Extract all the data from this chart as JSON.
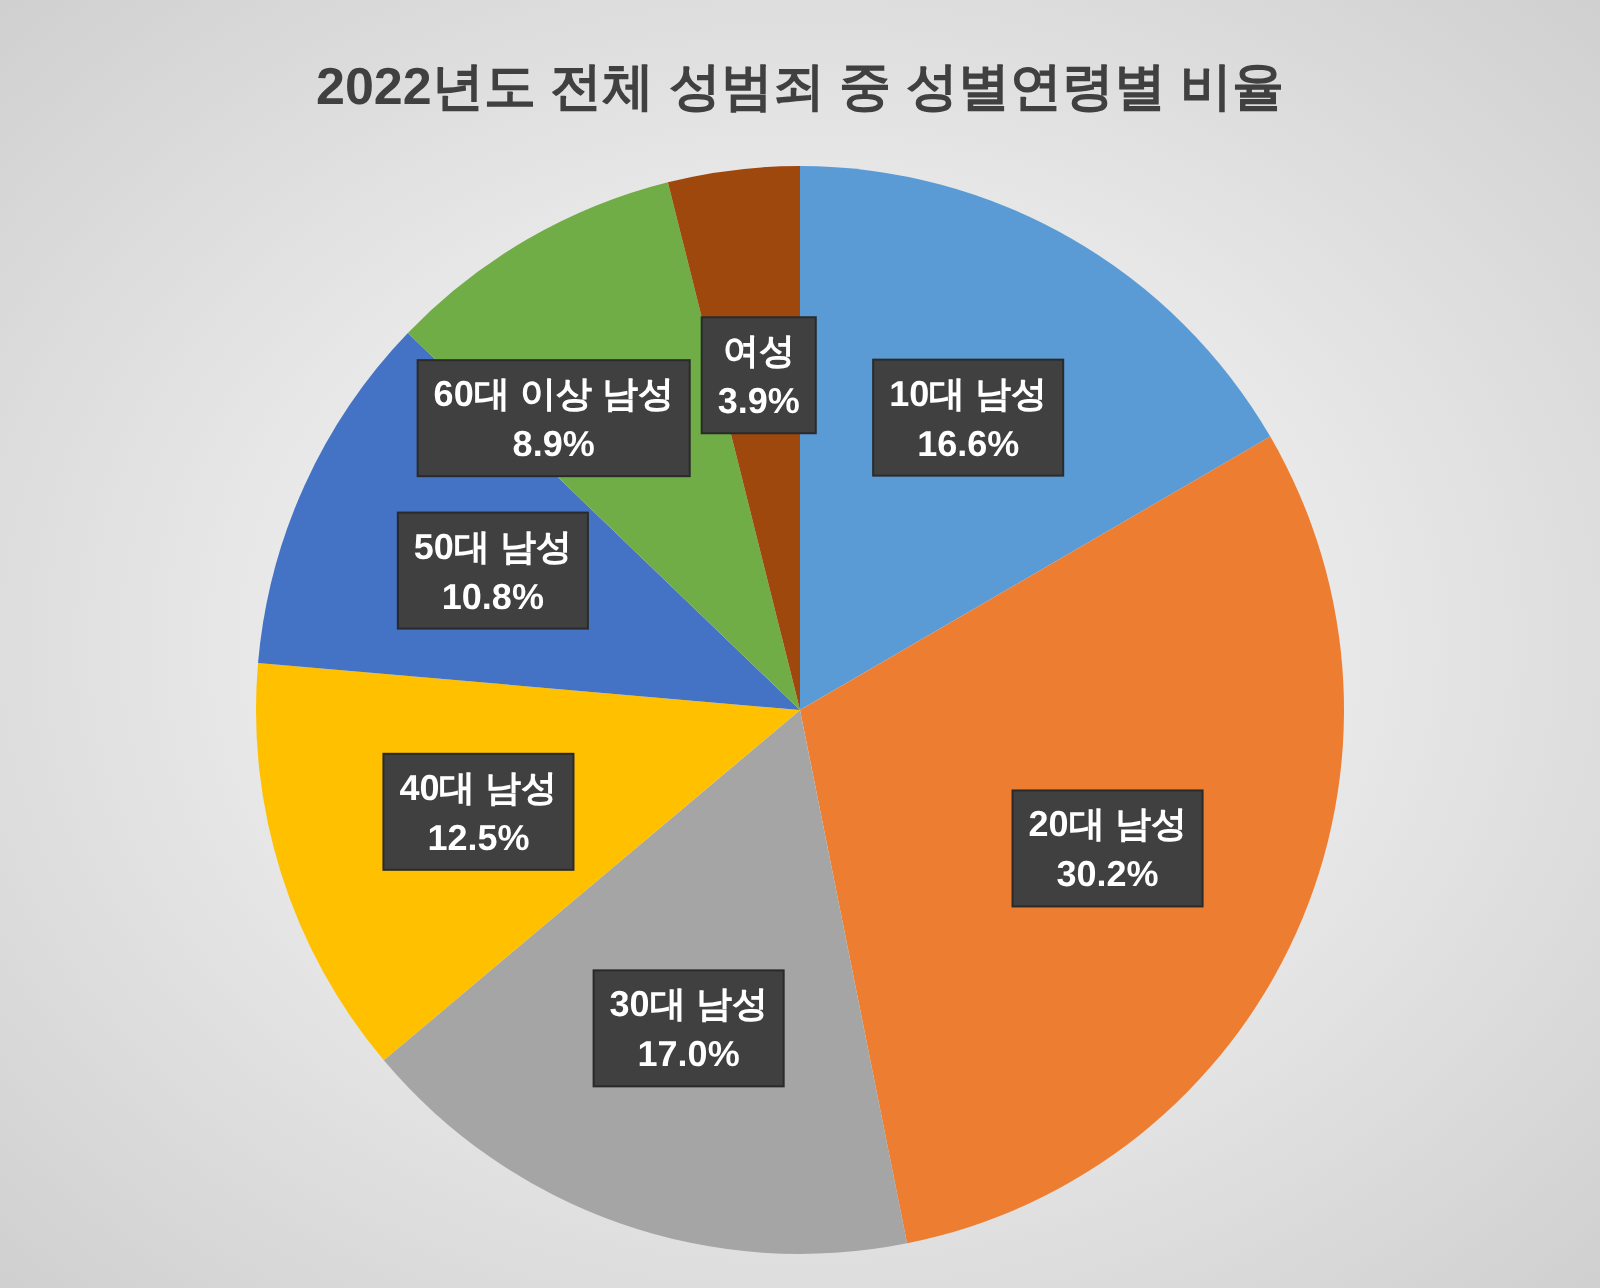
{
  "chart_data": {
    "type": "pie",
    "title": "2022년도 전체 성범죄 중 성별연령별 비율",
    "categories": [
      "10대 남성",
      "20대 남성",
      "30대 남성",
      "40대 남성",
      "50대 남성",
      "60대 이상 남성",
      "여성"
    ],
    "values": [
      16.6,
      30.2,
      17.0,
      12.5,
      10.8,
      8.9,
      3.9
    ],
    "value_labels": [
      "16.6%",
      "30.2%",
      "17.0%",
      "12.5%",
      "10.8%",
      "8.9%",
      "3.9%"
    ],
    "colors": [
      "#5b9bd5",
      "#ed7d31",
      "#a5a5a5",
      "#ffc000",
      "#4472c4",
      "#70ad47",
      "#9e480e"
    ]
  }
}
